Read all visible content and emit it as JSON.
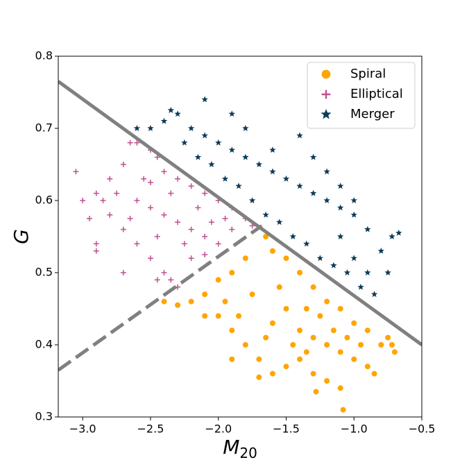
{
  "chart_data": {
    "type": "scatter",
    "xlabel": "M",
    "xlabel_subscript": "20",
    "ylabel": "G",
    "xlim": [
      -3.18,
      -0.5
    ],
    "ylim": [
      0.3,
      0.8
    ],
    "xticks": [
      {
        "value": -3.0,
        "label": "−3.0"
      },
      {
        "value": -2.5,
        "label": "−2.5"
      },
      {
        "value": -2.0,
        "label": "−2.0"
      },
      {
        "value": -1.5,
        "label": "−1.5"
      },
      {
        "value": -1.0,
        "label": "−1.0"
      },
      {
        "value": -0.5,
        "label": "−0.5"
      }
    ],
    "yticks": [
      0.3,
      0.4,
      0.5,
      0.6,
      0.7,
      0.8
    ],
    "legend": "upper right",
    "lines": [
      {
        "x": [
          -3.18,
          -0.5
        ],
        "y": [
          0.765,
          0.4
        ],
        "style": "solid",
        "color": "#808080"
      },
      {
        "x": [
          -3.18,
          -1.68
        ],
        "y": [
          0.365,
          0.565
        ],
        "style": "dashed",
        "color": "#808080"
      }
    ],
    "series": [
      {
        "name": "Spiral",
        "color": "#ffa500",
        "marker": "circle",
        "x": [
          -1.65,
          -1.6,
          -1.5,
          -1.4,
          -1.3,
          -1.2,
          -1.1,
          -1.0,
          -0.9,
          -0.8,
          -0.75,
          -0.72,
          -1.8,
          -1.9,
          -2.0,
          -2.1,
          -2.2,
          -2.3,
          -2.4,
          -2.0,
          -1.9,
          -1.8,
          -1.7,
          -1.6,
          -1.5,
          -1.4,
          -1.3,
          -1.28,
          -1.2,
          -1.1,
          -1.08,
          -1.7,
          -1.5,
          -1.6,
          -1.4,
          -1.3,
          -1.2,
          -1.1,
          -1.0,
          -0.9,
          -0.85,
          -1.75,
          -1.55,
          -1.35,
          -1.25,
          -1.15,
          -1.05,
          -0.95,
          -2.1,
          -1.95,
          -1.85,
          -1.65,
          -1.45,
          -1.35,
          -1.9,
          -0.7
        ],
        "values": [
          0.55,
          0.53,
          0.52,
          0.5,
          0.48,
          0.46,
          0.45,
          0.43,
          0.42,
          0.4,
          0.41,
          0.4,
          0.52,
          0.5,
          0.49,
          0.47,
          0.46,
          0.455,
          0.46,
          0.44,
          0.42,
          0.4,
          0.38,
          0.36,
          0.37,
          0.38,
          0.36,
          0.335,
          0.35,
          0.34,
          0.31,
          0.355,
          0.45,
          0.43,
          0.42,
          0.41,
          0.4,
          0.39,
          0.38,
          0.37,
          0.36,
          0.47,
          0.48,
          0.45,
          0.44,
          0.42,
          0.41,
          0.4,
          0.44,
          0.46,
          0.44,
          0.41,
          0.4,
          0.39,
          0.38,
          0.39
        ]
      },
      {
        "name": "Elliptical",
        "color": "#bf4f91",
        "marker": "plus",
        "x": [
          -3.05,
          -3.0,
          -2.95,
          -2.9,
          -2.9,
          -2.8,
          -2.7,
          -2.65,
          -2.6,
          -2.5,
          -2.45,
          -2.4,
          -2.3,
          -2.2,
          -2.1,
          -2.0,
          -1.9,
          -1.8,
          -1.75,
          -2.8,
          -2.7,
          -2.6,
          -2.5,
          -2.4,
          -2.35,
          -2.3,
          -2.6,
          -2.5,
          -2.4,
          -2.3,
          -2.2,
          -2.1,
          -2.0,
          -1.9,
          -2.2,
          -2.1,
          -2.55,
          -2.35,
          -2.15,
          -1.95,
          -2.75,
          -2.85,
          -2.65,
          -2.45,
          -2.25,
          -2.05,
          -2.7,
          -2.9,
          -2.45,
          -2.5
        ],
        "values": [
          0.64,
          0.6,
          0.575,
          0.54,
          0.61,
          0.63,
          0.65,
          0.68,
          0.68,
          0.67,
          0.66,
          0.64,
          0.63,
          0.62,
          0.61,
          0.6,
          0.59,
          0.575,
          0.565,
          0.58,
          0.56,
          0.54,
          0.52,
          0.5,
          0.49,
          0.48,
          0.6,
          0.59,
          0.58,
          0.57,
          0.56,
          0.55,
          0.54,
          0.56,
          0.52,
          0.525,
          0.63,
          0.61,
          0.59,
          0.575,
          0.61,
          0.6,
          0.575,
          0.55,
          0.54,
          0.57,
          0.5,
          0.53,
          0.49,
          0.625
        ]
      },
      {
        "name": "Merger",
        "color": "#0c3b5a",
        "marker": "star",
        "x": [
          -2.6,
          -2.5,
          -2.4,
          -2.35,
          -2.3,
          -2.2,
          -2.1,
          -2.1,
          -2.0,
          -1.9,
          -1.8,
          -1.7,
          -1.6,
          -1.5,
          -1.4,
          -1.3,
          -1.2,
          -1.1,
          -1.0,
          -0.9,
          -0.8,
          -0.75,
          -0.67,
          -0.72,
          -0.85,
          -0.95,
          -1.05,
          -1.15,
          -1.25,
          -1.35,
          -1.45,
          -1.55,
          -1.65,
          -1.75,
          -1.85,
          -1.95,
          -2.05,
          -2.15,
          -2.25,
          -1.4,
          -1.3,
          -1.2,
          -1.1,
          -1.0,
          -1.6,
          -1.8,
          -1.9,
          -1.0,
          -0.9,
          -1.1
        ],
        "values": [
          0.7,
          0.7,
          0.71,
          0.725,
          0.72,
          0.7,
          0.74,
          0.69,
          0.68,
          0.67,
          0.66,
          0.65,
          0.64,
          0.63,
          0.62,
          0.61,
          0.6,
          0.59,
          0.58,
          0.56,
          0.53,
          0.5,
          0.555,
          0.55,
          0.47,
          0.48,
          0.5,
          0.51,
          0.52,
          0.54,
          0.55,
          0.57,
          0.58,
          0.6,
          0.62,
          0.63,
          0.65,
          0.66,
          0.68,
          0.69,
          0.66,
          0.64,
          0.62,
          0.6,
          0.67,
          0.7,
          0.72,
          0.52,
          0.5,
          0.55
        ]
      }
    ]
  }
}
